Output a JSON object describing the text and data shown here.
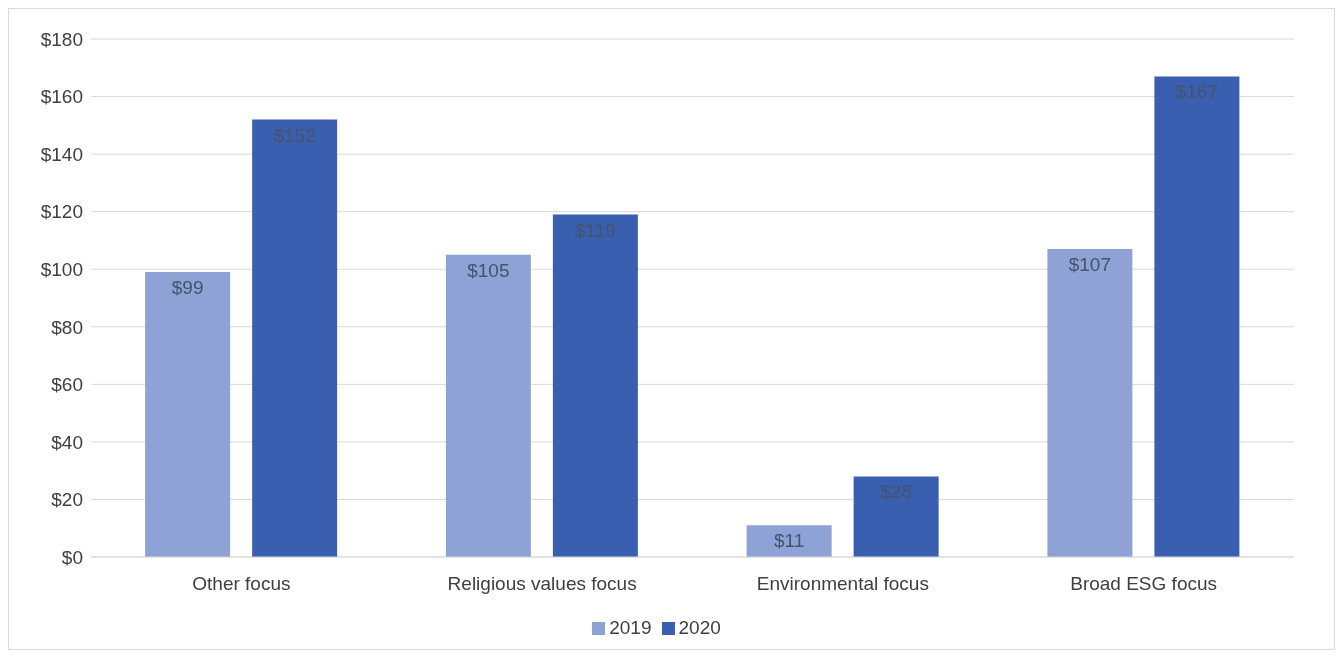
{
  "chart_data": {
    "type": "bar",
    "categories": [
      "Other focus",
      "Religious values focus",
      "Environmental focus",
      "Broad ESG focus"
    ],
    "series": [
      {
        "name": "2019",
        "color": "#8fa2d6",
        "values": [
          99,
          105,
          11,
          107
        ],
        "value_labels": [
          "$99",
          "$105",
          "$11",
          "$107"
        ]
      },
      {
        "name": "2020",
        "color": "#3a5fb0",
        "values": [
          152,
          119,
          28,
          167
        ],
        "value_labels": [
          "$152",
          "$119",
          "$28",
          "$167"
        ]
      }
    ],
    "ylim": [
      0,
      180
    ],
    "yticks": [
      {
        "value": 0,
        "label": "$0"
      },
      {
        "value": 20,
        "label": "$20"
      },
      {
        "value": 40,
        "label": "$40"
      },
      {
        "value": 60,
        "label": "$60"
      },
      {
        "value": 80,
        "label": "$80"
      },
      {
        "value": 100,
        "label": "$100"
      },
      {
        "value": 120,
        "label": "$120"
      },
      {
        "value": 140,
        "label": "$140"
      },
      {
        "value": 160,
        "label": "$160"
      },
      {
        "value": 180,
        "label": "$180"
      }
    ],
    "grid": "y",
    "legend": "bottom"
  }
}
